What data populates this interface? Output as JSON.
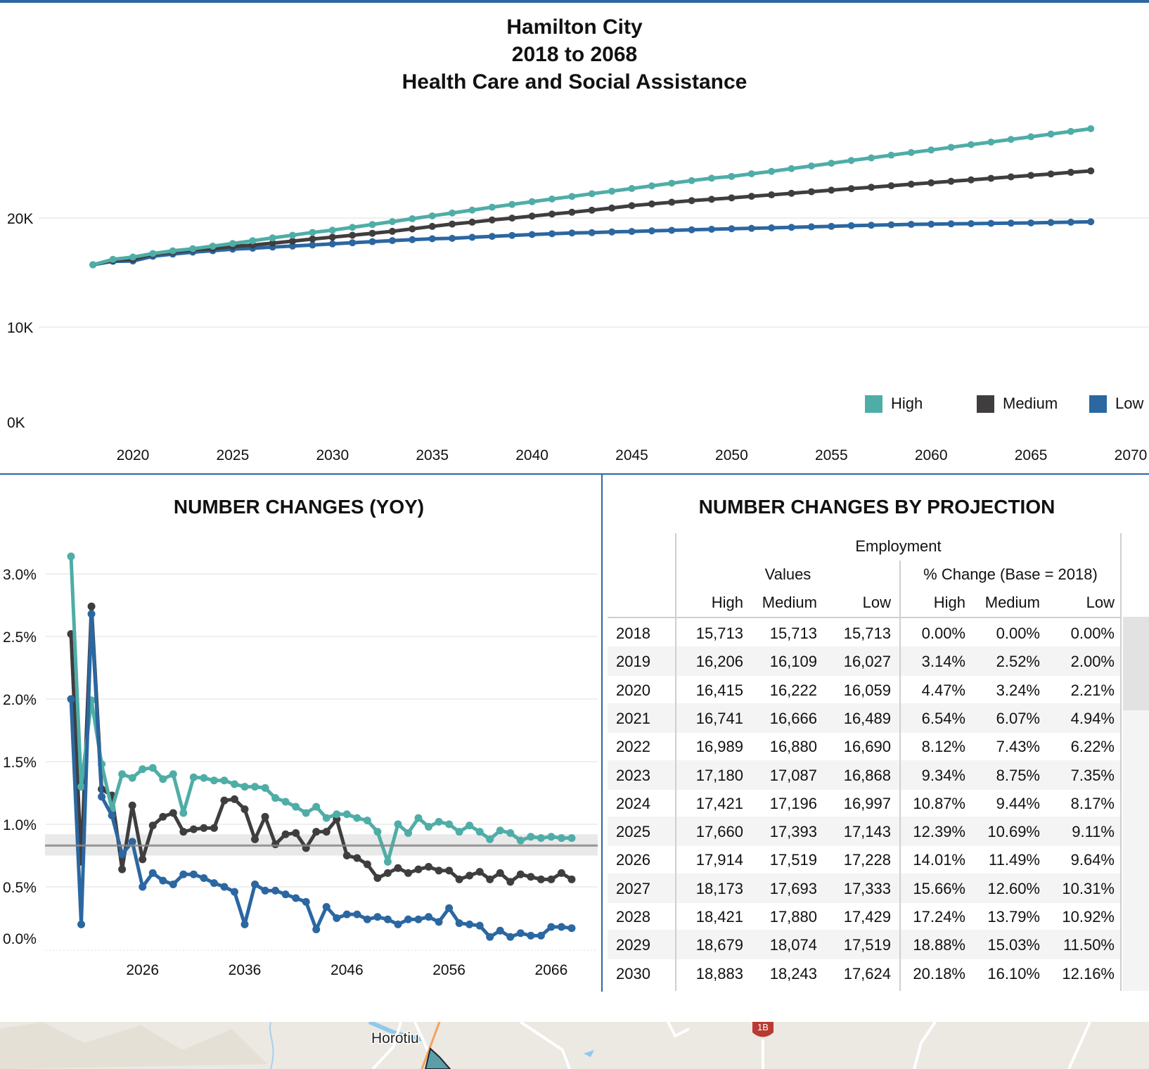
{
  "header": {
    "title_lines": [
      "Hamilton City",
      "2018 to 2068",
      "Health Care and Social Assistance"
    ]
  },
  "colors": {
    "high": "#4fada7",
    "medium": "#3f3d3e",
    "low": "#2b67a1",
    "accent": "#2b67a1"
  },
  "legend": [
    {
      "label": "High",
      "color": "#4fada7"
    },
    {
      "label": "Medium",
      "color": "#3f3d3e"
    },
    {
      "label": "Low",
      "color": "#2b67a1"
    }
  ],
  "chart_data": [
    {
      "type": "line",
      "title": "Hamilton City 2018 to 2068 Health Care and Social Assistance",
      "xlabel": "",
      "ylabel": "",
      "x_start": 2018,
      "x_end": 2068,
      "xlim": [
        2018,
        2070
      ],
      "ylim": [
        0,
        30000
      ],
      "yticks": [
        {
          "value": 0,
          "label": "0K"
        },
        {
          "value": 10000,
          "label": "10K"
        },
        {
          "value": 20000,
          "label": "20K"
        }
      ],
      "xticks": [
        "2020",
        "2025",
        "2030",
        "2035",
        "2040",
        "2045",
        "2050",
        "2055",
        "2060",
        "2065",
        "2070"
      ],
      "base_value_2018": 15713,
      "end_values_2068_approx": {
        "High": 28200,
        "Medium": 24400,
        "Low": 19700
      },
      "series_note": "yearly levels = 2018 base compounded by the YoY series of chart 2",
      "legend_position": "bottom-right",
      "grid": true
    },
    {
      "type": "line",
      "title": "NUMBER CHANGES (YOY)",
      "x_start": 2019,
      "xlim": [
        2018,
        2069
      ],
      "ylim": [
        0,
        3.2
      ],
      "yticks": [
        {
          "value": 3.0,
          "label": "3.0%"
        },
        {
          "value": 2.5,
          "label": "2.5%"
        },
        {
          "value": 2.0,
          "label": "2.0%"
        },
        {
          "value": 1.5,
          "label": "1.5%"
        },
        {
          "value": 1.0,
          "label": "1.0%"
        },
        {
          "value": 0.5,
          "label": "0.5%"
        },
        {
          "value": 0.0,
          "label": "0.0%"
        }
      ],
      "xticks": [
        {
          "value": 2026,
          "label": "2026"
        },
        {
          "value": 2036,
          "label": "2036"
        },
        {
          "value": 2046,
          "label": "2046"
        },
        {
          "value": 2056,
          "label": "2056"
        },
        {
          "value": 2066,
          "label": "2066"
        }
      ],
      "reference_line": {
        "value": 0.83,
        "band": [
          0.75,
          0.92
        ]
      },
      "series": [
        {
          "name": "High",
          "values": [
            3.14,
            1.3,
            1.99,
            1.48,
            1.12,
            1.4,
            1.37,
            1.44,
            1.45,
            1.36,
            1.4,
            1.09,
            1.375,
            1.37,
            1.35,
            1.35,
            1.32,
            1.3,
            1.3,
            1.29,
            1.21,
            1.18,
            1.14,
            1.09,
            1.14,
            1.05,
            1.08,
            1.08,
            1.05,
            1.03,
            0.94,
            0.7,
            1.0,
            0.93,
            1.05,
            0.98,
            1.02,
            1.0,
            0.94,
            0.99,
            0.94,
            0.88,
            0.95,
            0.93,
            0.87,
            0.9,
            0.89,
            0.9,
            0.89,
            0.89
          ]
        },
        {
          "name": "Medium",
          "values": [
            2.52,
            0.7,
            2.74,
            1.28,
            1.23,
            0.64,
            1.15,
            0.72,
            0.99,
            1.06,
            1.09,
            0.94,
            0.96,
            0.97,
            0.97,
            1.19,
            1.2,
            1.12,
            0.88,
            1.06,
            0.84,
            0.92,
            0.93,
            0.81,
            0.94,
            0.94,
            1.04,
            0.75,
            0.73,
            0.68,
            0.57,
            0.61,
            0.65,
            0.61,
            0.64,
            0.66,
            0.63,
            0.63,
            0.56,
            0.59,
            0.62,
            0.56,
            0.61,
            0.54,
            0.6,
            0.58,
            0.56,
            0.56,
            0.61,
            0.56
          ]
        },
        {
          "name": "Low",
          "values": [
            2.0,
            0.2,
            2.68,
            1.22,
            1.07,
            0.76,
            0.86,
            0.5,
            0.61,
            0.55,
            0.52,
            0.6,
            0.6,
            0.57,
            0.53,
            0.5,
            0.46,
            0.2,
            0.52,
            0.47,
            0.47,
            0.44,
            0.41,
            0.38,
            0.16,
            0.34,
            0.25,
            0.28,
            0.28,
            0.24,
            0.26,
            0.24,
            0.2,
            0.24,
            0.24,
            0.26,
            0.22,
            0.33,
            0.21,
            0.2,
            0.19,
            0.1,
            0.15,
            0.1,
            0.13,
            0.11,
            0.11,
            0.18,
            0.18,
            0.17
          ]
        }
      ],
      "grid": true
    }
  ],
  "yoy_panel": {
    "title": "NUMBER CHANGES (YOY)"
  },
  "table_panel": {
    "title": "NUMBER CHANGES BY PROJECTION",
    "header_group": "Employment",
    "subgroups": [
      "Values",
      "% Change (Base = 2018)"
    ],
    "columns": [
      "High",
      "Medium",
      "Low",
      "High",
      "Medium",
      "Low"
    ],
    "rows": [
      [
        "2018",
        "15,713",
        "15,713",
        "15,713",
        "0.00%",
        "0.00%",
        "0.00%"
      ],
      [
        "2019",
        "16,206",
        "16,109",
        "16,027",
        "3.14%",
        "2.52%",
        "2.00%"
      ],
      [
        "2020",
        "16,415",
        "16,222",
        "16,059",
        "4.47%",
        "3.24%",
        "2.21%"
      ],
      [
        "2021",
        "16,741",
        "16,666",
        "16,489",
        "6.54%",
        "6.07%",
        "4.94%"
      ],
      [
        "2022",
        "16,989",
        "16,880",
        "16,690",
        "8.12%",
        "7.43%",
        "6.22%"
      ],
      [
        "2023",
        "17,180",
        "17,087",
        "16,868",
        "9.34%",
        "8.75%",
        "7.35%"
      ],
      [
        "2024",
        "17,421",
        "17,196",
        "16,997",
        "10.87%",
        "9.44%",
        "8.17%"
      ],
      [
        "2025",
        "17,660",
        "17,393",
        "17,143",
        "12.39%",
        "10.69%",
        "9.11%"
      ],
      [
        "2026",
        "17,914",
        "17,519",
        "17,228",
        "14.01%",
        "11.49%",
        "9.64%"
      ],
      [
        "2027",
        "18,173",
        "17,693",
        "17,333",
        "15.66%",
        "12.60%",
        "10.31%"
      ],
      [
        "2028",
        "18,421",
        "17,880",
        "17,429",
        "17.24%",
        "13.79%",
        "10.92%"
      ],
      [
        "2029",
        "18,679",
        "18,074",
        "17,519",
        "18.88%",
        "15.03%",
        "11.50%"
      ],
      [
        "2030",
        "18,883",
        "18,243",
        "17,624",
        "20.18%",
        "16.10%",
        "12.16%"
      ]
    ]
  },
  "map": {
    "place_label": "Horotiu",
    "road_shield": "1B"
  }
}
